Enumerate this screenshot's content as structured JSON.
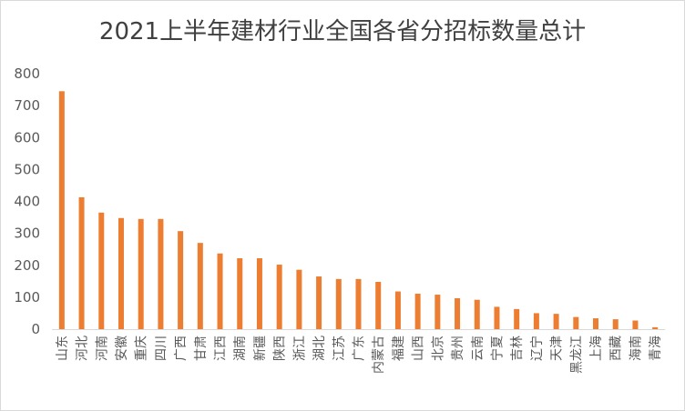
{
  "chart_data": {
    "type": "bar",
    "title": "2021上半年建材行业全国各省分招标数量总计",
    "xlabel": "",
    "ylabel": "",
    "ylim": [
      0,
      800
    ],
    "yticks": [
      0,
      100,
      200,
      300,
      400,
      500,
      600,
      700,
      800
    ],
    "grid": false,
    "legend": "none",
    "bar_color": "#ED7D31",
    "categories": [
      "山东",
      "河北",
      "河南",
      "安徽",
      "重庆",
      "四川",
      "广西",
      "甘肃",
      "江西",
      "湖南",
      "新疆",
      "陕西",
      "浙江",
      "湖北",
      "江苏",
      "广东",
      "内蒙古",
      "福建",
      "山西",
      "北京",
      "贵州",
      "云南",
      "宁夏",
      "吉林",
      "辽宁",
      "天津",
      "黑龙江",
      "上海",
      "西藏",
      "海南",
      "青海"
    ],
    "values": [
      745,
      413,
      365,
      348,
      345,
      345,
      307,
      270,
      237,
      222,
      222,
      202,
      186,
      165,
      157,
      157,
      148,
      118,
      111,
      108,
      97,
      92,
      70,
      63,
      50,
      48,
      38,
      34,
      31,
      27,
      6
    ]
  }
}
